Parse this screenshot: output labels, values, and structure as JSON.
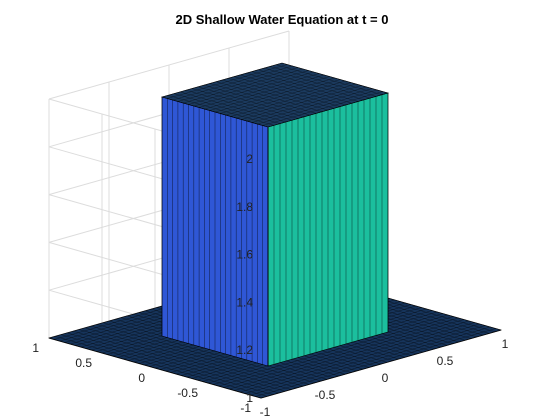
{
  "chart_data": {
    "type": "surface",
    "title": "2D Shallow Water Equation at t = 0",
    "xlabel": "",
    "ylabel": "",
    "zlabel": "",
    "xlim": [
      -1,
      1
    ],
    "ylim": [
      -1,
      1
    ],
    "zlim": [
      1,
      2
    ],
    "x_ticks": [
      -1,
      -0.5,
      0,
      0.5,
      1
    ],
    "x_tick_labels": [
      "-1",
      "-0.5",
      "0",
      "0.5",
      "1"
    ],
    "y_ticks": [
      -1,
      -0.5,
      0,
      0.5,
      1
    ],
    "y_tick_labels": [
      "-1",
      "-0.5",
      "0",
      "0.5",
      "1"
    ],
    "z_ticks": [
      1,
      1.2,
      1.4,
      1.6,
      1.8,
      2
    ],
    "z_tick_labels": [
      "1",
      "1.2",
      "1.4",
      "1.6",
      "1.8",
      "2"
    ],
    "grid": true,
    "colormap": "parula",
    "surface": {
      "description_of_function": "height h(x,y) at t=0",
      "base_height": 1,
      "block_height": 2,
      "block_x_range": [
        -0.5,
        0.5
      ],
      "block_y_range": [
        -0.5,
        0.5
      ],
      "mesh_lines": 41
    },
    "colors": {
      "base_face": "#16345b",
      "top_face": "#1b3a5e",
      "left_wall": "#2f57d6",
      "right_wall": "#1bbf9e",
      "grid": "#dcdcdc",
      "mesh": "#000000"
    }
  }
}
